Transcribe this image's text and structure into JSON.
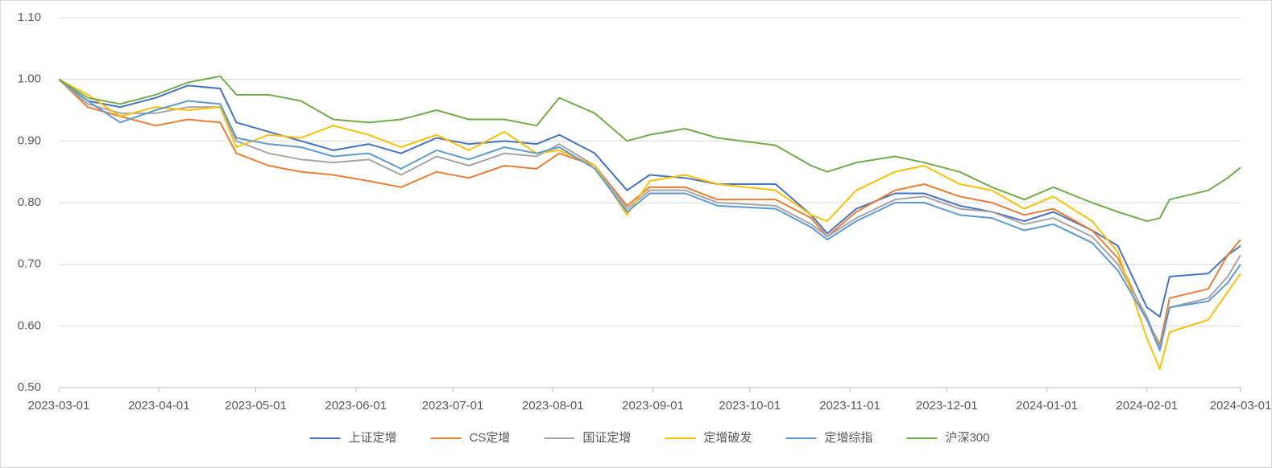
{
  "chart_data": {
    "type": "line",
    "x": [
      "2023-03-01",
      "2023-03-10",
      "2023-03-20",
      "2023-03-31",
      "2023-04-10",
      "2023-04-20",
      "2023-04-25",
      "2023-05-05",
      "2023-05-15",
      "2023-05-25",
      "2023-06-05",
      "2023-06-15",
      "2023-06-26",
      "2023-07-06",
      "2023-07-17",
      "2023-07-27",
      "2023-08-03",
      "2023-08-14",
      "2023-08-24",
      "2023-08-31",
      "2023-09-11",
      "2023-09-21",
      "2023-10-09",
      "2023-10-20",
      "2023-10-25",
      "2023-11-03",
      "2023-11-15",
      "2023-11-24",
      "2023-12-05",
      "2023-12-15",
      "2023-12-25",
      "2024-01-03",
      "2024-01-15",
      "2024-01-23",
      "2024-02-01",
      "2024-02-05",
      "2024-02-08",
      "2024-02-20",
      "2024-02-26",
      "2024-03-01"
    ],
    "series": [
      {
        "name": "上证定增",
        "color": "#4472c4",
        "values": [
          1.0,
          0.965,
          0.955,
          0.97,
          0.99,
          0.985,
          0.93,
          0.915,
          0.9,
          0.885,
          0.895,
          0.88,
          0.905,
          0.895,
          0.9,
          0.895,
          0.91,
          0.88,
          0.82,
          0.845,
          0.84,
          0.83,
          0.83,
          0.78,
          0.75,
          0.79,
          0.815,
          0.815,
          0.795,
          0.785,
          0.77,
          0.785,
          0.755,
          0.73,
          0.63,
          0.615,
          0.68,
          0.685,
          0.715,
          0.73
        ]
      },
      {
        "name": "CS定增",
        "color": "#ed7d31",
        "values": [
          1.0,
          0.955,
          0.94,
          0.925,
          0.935,
          0.93,
          0.88,
          0.86,
          0.85,
          0.845,
          0.835,
          0.825,
          0.85,
          0.84,
          0.86,
          0.855,
          0.88,
          0.86,
          0.795,
          0.825,
          0.825,
          0.805,
          0.805,
          0.775,
          0.745,
          0.785,
          0.82,
          0.83,
          0.81,
          0.8,
          0.78,
          0.79,
          0.755,
          0.71,
          0.61,
          0.57,
          0.645,
          0.66,
          0.715,
          0.74
        ]
      },
      {
        "name": "国证定增",
        "color": "#a5a5a5",
        "values": [
          1.0,
          0.96,
          0.945,
          0.945,
          0.955,
          0.955,
          0.9,
          0.88,
          0.87,
          0.865,
          0.87,
          0.845,
          0.875,
          0.86,
          0.88,
          0.875,
          0.895,
          0.86,
          0.79,
          0.82,
          0.82,
          0.8,
          0.795,
          0.765,
          0.745,
          0.775,
          0.805,
          0.81,
          0.79,
          0.785,
          0.765,
          0.775,
          0.745,
          0.7,
          0.615,
          0.565,
          0.63,
          0.645,
          0.68,
          0.715
        ]
      },
      {
        "name": "定增破发",
        "color": "#ffc000",
        "values": [
          1.0,
          0.975,
          0.94,
          0.955,
          0.95,
          0.955,
          0.89,
          0.91,
          0.905,
          0.925,
          0.91,
          0.89,
          0.91,
          0.885,
          0.915,
          0.88,
          0.885,
          0.86,
          0.78,
          0.835,
          0.845,
          0.83,
          0.82,
          0.78,
          0.77,
          0.82,
          0.85,
          0.86,
          0.83,
          0.82,
          0.79,
          0.81,
          0.77,
          0.72,
          0.58,
          0.53,
          0.59,
          0.61,
          0.655,
          0.685
        ]
      },
      {
        "name": "定增综指",
        "color": "#5b9bd5",
        "values": [
          1.0,
          0.965,
          0.93,
          0.95,
          0.965,
          0.96,
          0.905,
          0.895,
          0.89,
          0.875,
          0.88,
          0.855,
          0.885,
          0.87,
          0.89,
          0.88,
          0.89,
          0.855,
          0.785,
          0.815,
          0.815,
          0.795,
          0.79,
          0.76,
          0.74,
          0.77,
          0.8,
          0.8,
          0.78,
          0.775,
          0.755,
          0.765,
          0.735,
          0.69,
          0.61,
          0.56,
          0.63,
          0.64,
          0.67,
          0.7
        ]
      },
      {
        "name": "沪深300",
        "color": "#70ad47",
        "values": [
          1.0,
          0.97,
          0.96,
          0.975,
          0.995,
          1.005,
          0.975,
          0.975,
          0.965,
          0.935,
          0.93,
          0.935,
          0.95,
          0.935,
          0.935,
          0.925,
          0.97,
          0.945,
          0.9,
          0.91,
          0.92,
          0.905,
          0.893,
          0.86,
          0.85,
          0.865,
          0.875,
          0.865,
          0.85,
          0.825,
          0.805,
          0.825,
          0.8,
          0.785,
          0.77,
          0.775,
          0.805,
          0.82,
          0.84,
          0.857
        ]
      }
    ],
    "xlim": [
      "2023-03-01",
      "2024-03-01"
    ],
    "xticks": [
      "2023-03-01",
      "2023-04-01",
      "2023-05-01",
      "2023-06-01",
      "2023-07-01",
      "2023-08-01",
      "2023-09-01",
      "2023-10-01",
      "2023-11-01",
      "2023-12-01",
      "2024-01-01",
      "2024-02-01",
      "2024-03-01"
    ],
    "ylim": [
      0.5,
      1.1
    ],
    "yticks": [
      {
        "value": 0.5,
        "label": "0.50"
      },
      {
        "value": 0.6,
        "label": "0.60"
      },
      {
        "value": 0.7,
        "label": "0.70"
      },
      {
        "value": 0.8,
        "label": "0.80"
      },
      {
        "value": 0.9,
        "label": "0.90"
      },
      {
        "value": 1.0,
        "label": "1.00"
      },
      {
        "value": 1.1,
        "label": "1.10"
      }
    ],
    "grid": true,
    "legend": "bottom"
  }
}
